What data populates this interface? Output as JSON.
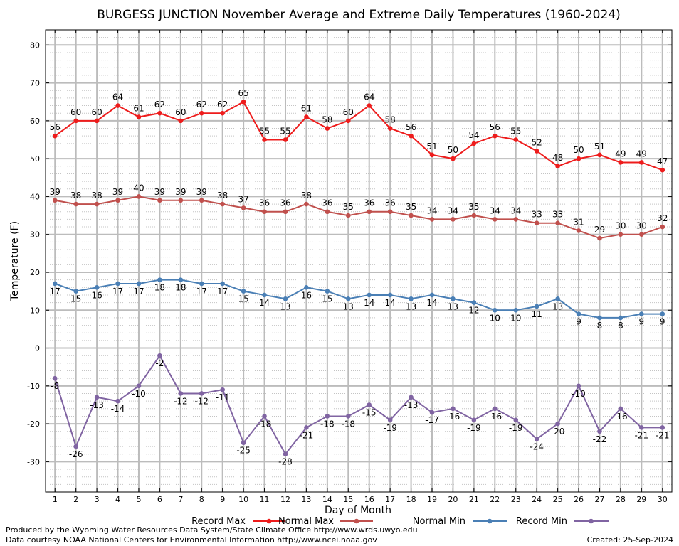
{
  "chart_data": {
    "type": "line",
    "title": "BURGESS JUNCTION November Average and Extreme Daily Temperatures (1960-2024)",
    "xlabel": "Day of Month",
    "ylabel": "Temperature (F)",
    "ylim": [
      -38,
      84
    ],
    "yticks": [
      80,
      70,
      60,
      50,
      40,
      30,
      20,
      10,
      0,
      -10,
      -20,
      -30
    ],
    "x": [
      1,
      2,
      3,
      4,
      5,
      6,
      7,
      8,
      9,
      10,
      11,
      12,
      13,
      14,
      15,
      16,
      17,
      18,
      19,
      20,
      21,
      22,
      23,
      24,
      25,
      26,
      27,
      28,
      29,
      30
    ],
    "grid": true,
    "legend_position": "bottom",
    "series": [
      {
        "name": "Record Max",
        "color": "#ee1c1c",
        "values": [
          56,
          60,
          60,
          64,
          61,
          62,
          60,
          62,
          62,
          65,
          55,
          55,
          61,
          58,
          60,
          64,
          58,
          56,
          51,
          50,
          54,
          56,
          55,
          52,
          48,
          50,
          51,
          49,
          49,
          47
        ]
      },
      {
        "name": "Normal Max",
        "color": "#c0504d",
        "values": [
          39,
          38,
          38,
          39,
          40,
          39,
          39,
          39,
          38,
          37,
          36,
          36,
          38,
          36,
          35,
          36,
          36,
          35,
          34,
          34,
          35,
          34,
          34,
          33,
          33,
          31,
          29,
          30,
          30,
          32
        ]
      },
      {
        "name": "Normal Min",
        "color": "#4a7fb5",
        "values": [
          17,
          15,
          16,
          17,
          17,
          18,
          18,
          17,
          17,
          15,
          14,
          13,
          16,
          15,
          13,
          14,
          14,
          13,
          14,
          13,
          12,
          10,
          10,
          11,
          13,
          9,
          8,
          8,
          9,
          9
        ]
      },
      {
        "name": "Record Min",
        "color": "#8064a2",
        "values": [
          -8,
          -26,
          -13,
          -14,
          -10,
          -2,
          -12,
          -12,
          -11,
          -25,
          -18,
          -28,
          -21,
          -18,
          -18,
          -15,
          -19,
          -13,
          -17,
          -16,
          -19,
          -16,
          -19,
          -24,
          -20,
          -10,
          -22,
          -16,
          -21,
          -21
        ]
      }
    ]
  },
  "footer": {
    "produced_by": "Produced by the Wyoming Water Resources Data System/State Climate Office http://www.wrds.uwyo.edu",
    "courtesy": "Data courtesy NOAA National Centers for Environmental Information http://www.ncei.noaa.gov",
    "created": "Created:  25-Sep-2024"
  }
}
